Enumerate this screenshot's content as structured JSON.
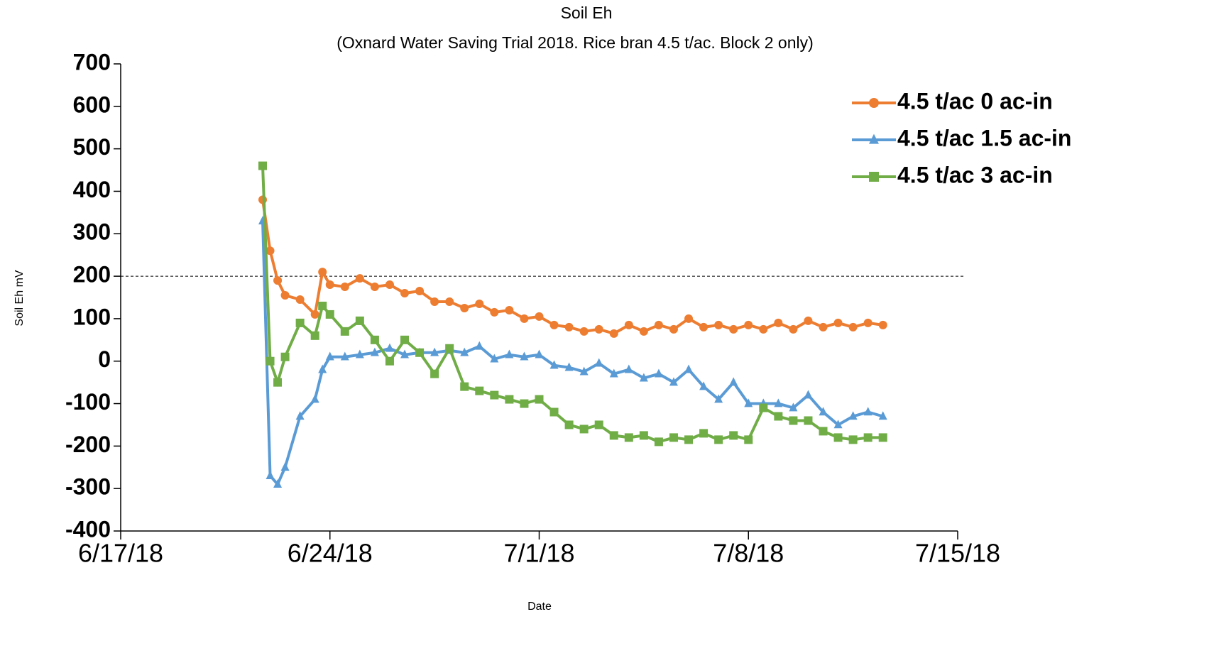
{
  "chart_data": {
    "type": "line",
    "title": "Soil Eh",
    "subtitle": "(Oxnard Water Saving Trial 2018. Rice bran 4.5 t/ac. Block 2 only)",
    "x_label": "Date",
    "y_label": "Soil Eh mV",
    "xlim": [
      "6/17/18",
      "7/15/18"
    ],
    "xticks": [
      "6/17/18",
      "6/24/18",
      "7/1/18",
      "7/8/18",
      "7/15/18"
    ],
    "ylim": [
      -400,
      700
    ],
    "yticks": [
      -400,
      -300,
      -200,
      -100,
      0,
      100,
      200,
      300,
      400,
      500,
      600,
      700
    ],
    "hline": 200,
    "legend": "top-right",
    "x": [
      "6/21/18 18:00",
      "6/22/18 00:00",
      "6/22/18 06:00",
      "6/22/18 12:00",
      "6/23/18 00:00",
      "6/23/18 12:00",
      "6/23/18 18:00",
      "6/24/18 00:00",
      "6/24/18 12:00",
      "6/25/18 00:00",
      "6/25/18 12:00",
      "6/26/18 00:00",
      "6/26/18 12:00",
      "6/27/18 00:00",
      "6/27/18 12:00",
      "6/28/18 00:00",
      "6/28/18 12:00",
      "6/29/18 00:00",
      "6/29/18 12:00",
      "6/30/18 00:00",
      "6/30/18 12:00",
      "7/1/18 00:00",
      "7/1/18 12:00",
      "7/2/18 00:00",
      "7/2/18 12:00",
      "7/3/18 00:00",
      "7/3/18 12:00",
      "7/4/18 00:00",
      "7/4/18 12:00",
      "7/5/18 00:00",
      "7/5/18 12:00",
      "7/6/18 00:00",
      "7/6/18 12:00",
      "7/7/18 00:00",
      "7/7/18 12:00",
      "7/8/18 00:00",
      "7/8/18 12:00",
      "7/9/18 00:00",
      "7/9/18 12:00",
      "7/10/18 00:00",
      "7/10/18 12:00",
      "7/11/18 00:00",
      "7/11/18 12:00",
      "7/12/18 00:00",
      "7/12/18 12:00"
    ],
    "series": [
      {
        "name": "4.5 t/ac 0 ac-in",
        "color": "#ed7d31",
        "marker": "circle",
        "values": [
          380,
          260,
          190,
          155,
          145,
          110,
          210,
          180,
          175,
          195,
          175,
          180,
          160,
          165,
          140,
          140,
          125,
          135,
          115,
          120,
          100,
          105,
          85,
          80,
          70,
          75,
          65,
          85,
          70,
          85,
          75,
          100,
          80,
          85,
          75,
          85,
          75,
          90,
          75,
          95,
          80,
          90,
          80,
          90,
          85
        ]
      },
      {
        "name": "4.5 t/ac 1.5 ac-in",
        "color": "#5b9bd5",
        "marker": "triangle",
        "values": [
          330,
          -270,
          -290,
          -250,
          -130,
          -90,
          -20,
          10,
          10,
          15,
          20,
          30,
          15,
          20,
          20,
          25,
          20,
          35,
          5,
          15,
          10,
          15,
          -10,
          -15,
          -25,
          -5,
          -30,
          -20,
          -40,
          -30,
          -50,
          -20,
          -60,
          -90,
          -50,
          -100,
          -100,
          -100,
          -110,
          -80,
          -120,
          -150,
          -130,
          -120,
          -130
        ]
      },
      {
        "name": "4.5 t/ac 3 ac-in",
        "color": "#70ad47",
        "marker": "square",
        "values": [
          460,
          0,
          -50,
          10,
          90,
          60,
          130,
          110,
          70,
          95,
          50,
          0,
          50,
          20,
          -30,
          30,
          -60,
          -70,
          -80,
          -90,
          -100,
          -90,
          -120,
          -150,
          -160,
          -150,
          -175,
          -180,
          -175,
          -190,
          -180,
          -185,
          -170,
          -185,
          -175,
          -185,
          -110,
          -130,
          -140,
          -140,
          -165,
          -180,
          -185,
          -180,
          -180
        ]
      }
    ]
  }
}
